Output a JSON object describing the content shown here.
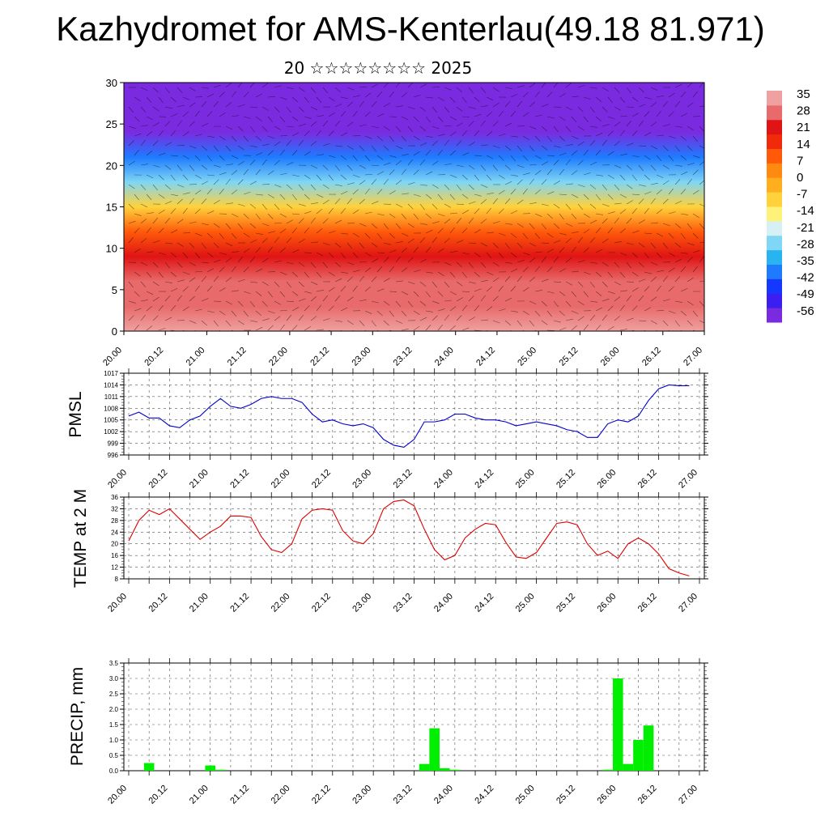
{
  "figure": {
    "title": "Kazhydromet for AMS-Kenterlau(49.18 81.971)",
    "subtitle": "20 ☆☆☆☆☆☆☆☆ 2025"
  },
  "colors": {
    "pmsl_line": "#0000cc",
    "temp_line": "#dd0000",
    "precip_bar": "#00ee00",
    "grid": "#555555",
    "colorbar": [
      "#7a2be0",
      "#3b1ff0",
      "#1438ff",
      "#1e7bff",
      "#28b4f0",
      "#7fd6f5",
      "#d6f0f5",
      "#fff27a",
      "#ffd23c",
      "#ffae1e",
      "#ff8a0f",
      "#ff5a0a",
      "#f02a0a",
      "#e01414",
      "#e86a6a",
      "#f0a0a0"
    ]
  },
  "chart_data": [
    {
      "type": "heatmap",
      "description_axis": "height",
      "title": "",
      "ylim": [
        0,
        30
      ],
      "y_ticks": [
        "0",
        "5",
        "10",
        "15",
        "20",
        "25",
        "30"
      ],
      "x_ticks": [
        "20.00",
        "20.12",
        "21.00",
        "21.12",
        "22.00",
        "22.12",
        "23.00",
        "23.12",
        "24.00",
        "24.12",
        "25.00",
        "25.12",
        "26.00",
        "26.12",
        "27.00"
      ],
      "colorbar_labels": [
        "35",
        "28",
        "21",
        "14",
        "7",
        "0",
        "-7",
        "-14",
        "-21",
        "-28",
        "-35",
        "-42",
        "-49",
        "-56"
      ],
      "vmin": -60,
      "vmax": 36,
      "layers": [
        {
          "level": 0,
          "value": 30
        },
        {
          "level": 3,
          "value": 27
        },
        {
          "level": 6,
          "value": 24
        },
        {
          "level": 9,
          "value": 18
        },
        {
          "level": 12,
          "value": 10
        },
        {
          "level": 15,
          "value": -7
        },
        {
          "level": 18,
          "value": -25
        },
        {
          "level": 21,
          "value": -42
        },
        {
          "level": 24,
          "value": -55
        },
        {
          "level": 27,
          "value": -58
        },
        {
          "level": 30,
          "value": -60
        }
      ]
    },
    {
      "type": "line",
      "ylabel": "PMSL",
      "ylim": [
        996,
        1017
      ],
      "y_ticks": [
        "996",
        "999",
        "1002",
        "1005",
        "1008",
        "1011",
        "1014",
        "1017"
      ],
      "x_ticks": [
        "20.00",
        "20.12",
        "21.00",
        "21.12",
        "22.00",
        "22.12",
        "23.00",
        "23.12",
        "24.00",
        "24.12",
        "25.00",
        "25.12",
        "26.00",
        "26.12",
        "27.00"
      ],
      "x": [
        0,
        3,
        6,
        9,
        12,
        15,
        18,
        21,
        24,
        27,
        30,
        33,
        36,
        39,
        42,
        45,
        48,
        51,
        54,
        57,
        60,
        63,
        66,
        69,
        72,
        75,
        78,
        81,
        84,
        87,
        90,
        93,
        96,
        99,
        102,
        105,
        108,
        111,
        114,
        117,
        120,
        123,
        126,
        129,
        132,
        135,
        138,
        141,
        144,
        147,
        150,
        153,
        156,
        159,
        162,
        165
      ],
      "values": [
        1006,
        1007,
        1005.5,
        1005.5,
        1003.5,
        1003,
        1005,
        1006,
        1008.5,
        1010.5,
        1008.5,
        1008,
        1009,
        1010.5,
        1011,
        1010.5,
        1010.5,
        1009.5,
        1006.5,
        1004.5,
        1005,
        1004,
        1003.5,
        1004,
        1003,
        1000,
        998.5,
        998,
        1000,
        1004.5,
        1004.5,
        1005,
        1006.5,
        1006.5,
        1005.5,
        1005,
        1005,
        1004.5,
        1003.5,
        1004,
        1004.5,
        1004,
        1003.5,
        1002.5,
        1002,
        1000.5,
        1000.5,
        1004,
        1005,
        1004.5,
        1006,
        1010,
        1013,
        1014,
        1013.8,
        1013.8
      ],
      "series_name": ""
    },
    {
      "type": "line",
      "ylabel": "TEMP at 2 M",
      "ylim": [
        8,
        36
      ],
      "y_ticks": [
        "8",
        "12",
        "16",
        "20",
        "24",
        "28",
        "32",
        "36"
      ],
      "x_ticks": [
        "20.00",
        "20.12",
        "21.00",
        "21.12",
        "22.00",
        "22.12",
        "23.00",
        "23.12",
        "24.00",
        "24.12",
        "25.00",
        "25.12",
        "26.00",
        "26.12",
        "27.00"
      ],
      "x": [
        0,
        3,
        6,
        9,
        12,
        15,
        18,
        21,
        24,
        27,
        30,
        33,
        36,
        39,
        42,
        45,
        48,
        51,
        54,
        57,
        60,
        63,
        66,
        69,
        72,
        75,
        78,
        81,
        84,
        87,
        90,
        93,
        96,
        99,
        102,
        105,
        108,
        111,
        114,
        117,
        120,
        123,
        126,
        129,
        132,
        135,
        138,
        141,
        144,
        147,
        150,
        153,
        156,
        159,
        162,
        165
      ],
      "values": [
        21,
        28,
        31.5,
        30,
        32,
        28.5,
        25,
        21.5,
        24,
        26,
        29.5,
        29.5,
        29,
        22.5,
        18,
        17,
        20,
        28.5,
        31.5,
        32,
        31.5,
        24.5,
        21,
        20,
        23.5,
        32,
        34.5,
        35,
        33,
        25,
        18,
        14.5,
        16,
        22,
        25,
        27,
        26.5,
        20.5,
        15.5,
        15,
        17,
        22,
        27,
        27.5,
        26.5,
        20,
        16,
        17.5,
        15,
        20,
        22,
        20,
        16.5,
        11.5,
        10,
        9
      ]
    },
    {
      "type": "bar",
      "ylabel": "PRECIP, mm",
      "ylim": [
        0,
        3.5
      ],
      "y_ticks": [
        "0.0",
        "0.5",
        "1.0",
        "1.5",
        "2.0",
        "2.5",
        "3.0",
        "3.5"
      ],
      "x_ticks": [
        "20.00",
        "20.12",
        "21.00",
        "21.12",
        "22.00",
        "22.12",
        "23.00",
        "23.12",
        "24.00",
        "24.12",
        "25.00",
        "25.12",
        "26.00",
        "26.12",
        "27.00"
      ],
      "bars": [
        {
          "hour": 6,
          "value": 0.25
        },
        {
          "hour": 24,
          "value": 0.17
        },
        {
          "hour": 27,
          "value": 0.03
        },
        {
          "hour": 87,
          "value": 0.22
        },
        {
          "hour": 90,
          "value": 1.38
        },
        {
          "hour": 93,
          "value": 0.08
        },
        {
          "hour": 96,
          "value": 0.03
        },
        {
          "hour": 141,
          "value": 0.03
        },
        {
          "hour": 144,
          "value": 3.0
        },
        {
          "hour": 147,
          "value": 0.22
        },
        {
          "hour": 150,
          "value": 1.0
        },
        {
          "hour": 153,
          "value": 1.47
        }
      ]
    }
  ]
}
